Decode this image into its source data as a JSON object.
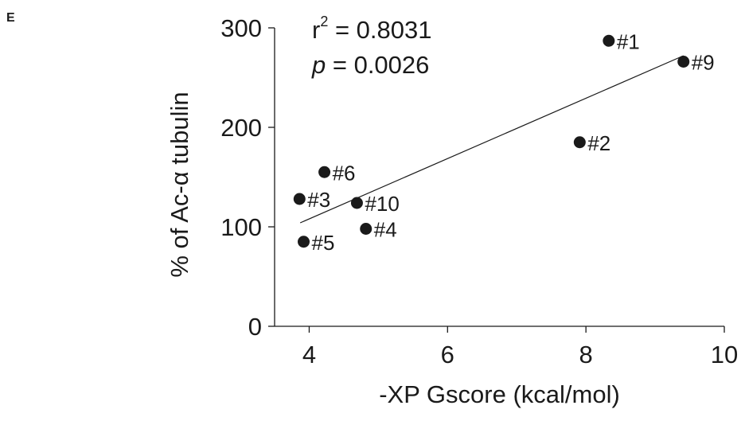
{
  "panel_label": "E",
  "stats": {
    "r2_prefix": "r",
    "r2_exp": "2",
    "r2_value": " = 0.8031",
    "p_symbol": "p",
    "p_value": " = 0.0026"
  },
  "chart_data": {
    "type": "scatter",
    "xlabel": "-XP Gscore (kcal/mol)",
    "ylabel": "% of Ac-α tubulin",
    "xlim": [
      3.5,
      10
    ],
    "ylim": [
      0,
      300
    ],
    "xticks": [
      4,
      6,
      8,
      10
    ],
    "yticks": [
      0,
      100,
      200,
      300
    ],
    "grid": false,
    "points": [
      {
        "label": "#1",
        "x": 8.33,
        "y": 287
      },
      {
        "label": "#9",
        "x": 9.41,
        "y": 266
      },
      {
        "label": "#2",
        "x": 7.91,
        "y": 185
      },
      {
        "label": "#6",
        "x": 4.22,
        "y": 155
      },
      {
        "label": "#3",
        "x": 3.86,
        "y": 128
      },
      {
        "label": "#10",
        "x": 4.69,
        "y": 124
      },
      {
        "label": "#4",
        "x": 4.82,
        "y": 98
      },
      {
        "label": "#5",
        "x": 3.92,
        "y": 85
      }
    ],
    "trendline": {
      "x": [
        3.87,
        9.41
      ],
      "y": [
        104,
        272
      ]
    }
  }
}
